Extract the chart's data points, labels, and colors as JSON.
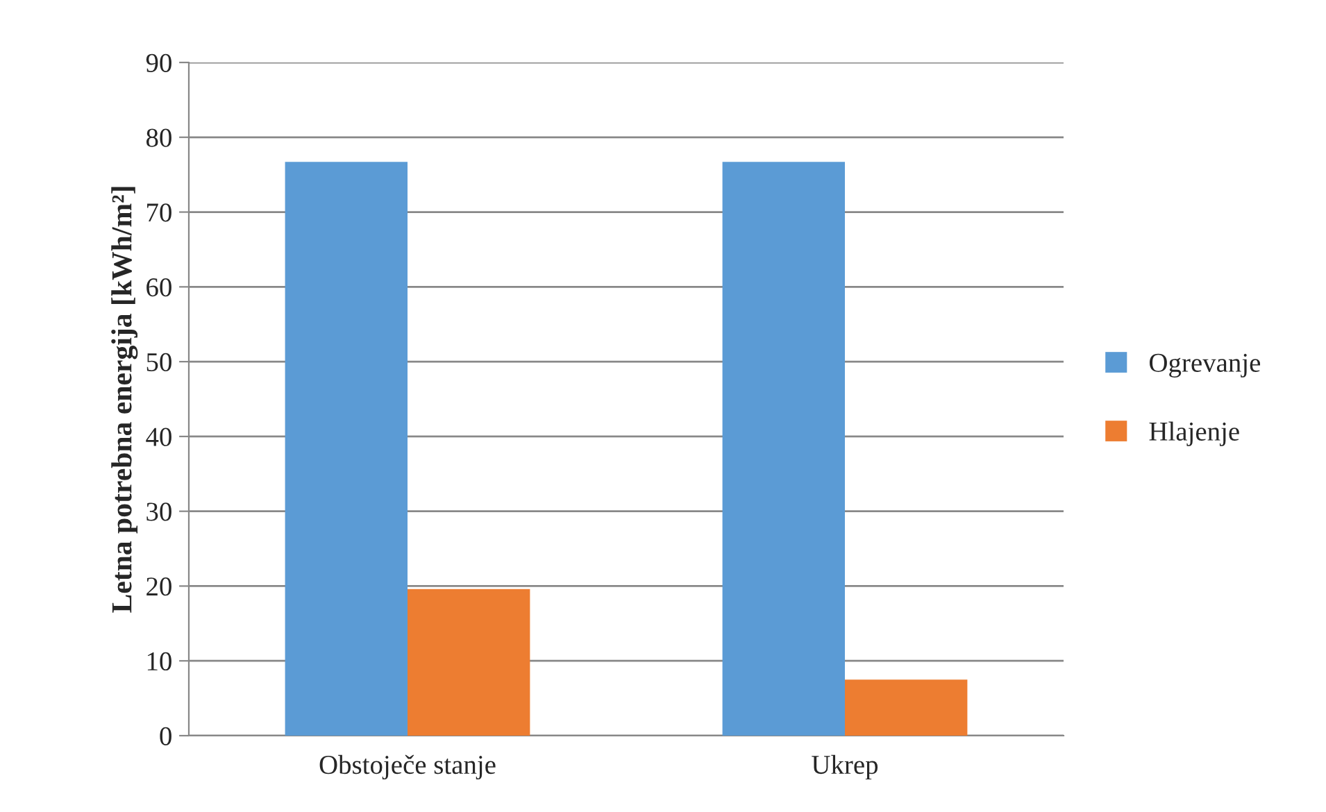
{
  "chart_data": {
    "type": "bar",
    "ylabel": "Letna potrebna energija [kWh/m²]",
    "categories": [
      "Obstoječe stanje",
      "Ukrep"
    ],
    "series": [
      {
        "name": "Ogrevanje",
        "color": "#5b9bd5",
        "values": [
          76.7,
          76.7
        ]
      },
      {
        "name": "Hlajenje",
        "color": "#ed7d31",
        "values": [
          19.6,
          7.5
        ]
      }
    ],
    "ylim": [
      0,
      90
    ],
    "yticks": [
      0,
      10,
      20,
      30,
      40,
      50,
      60,
      70,
      80,
      90
    ],
    "grid": "y",
    "legend": "right"
  }
}
